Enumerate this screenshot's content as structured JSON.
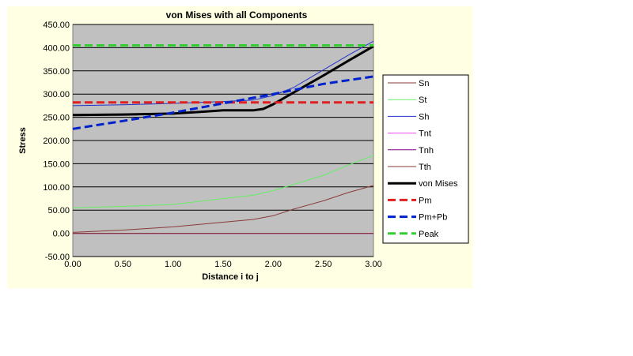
{
  "chart_data": {
    "type": "line",
    "title": "von Mises with all Components",
    "xlabel": "Distance i to j",
    "ylabel": "Stress",
    "xlim": [
      0,
      3
    ],
    "ylim": [
      -50,
      450
    ],
    "x_ticks": [
      "0.00",
      "0.50",
      "1.00",
      "1.50",
      "2.00",
      "2.50",
      "3.00"
    ],
    "y_ticks": [
      "-50.00",
      "0.00",
      "50.00",
      "100.00",
      "150.00",
      "200.00",
      "250.00",
      "300.00",
      "350.00",
      "400.00",
      "450.00"
    ],
    "grid": "horizontal",
    "plot_background": "#c0c0c0",
    "legend_position": "right",
    "series": [
      {
        "name": "Sn",
        "color": "#8b3a3a",
        "style": "thin",
        "x": [
          0,
          0.5,
          1.0,
          1.5,
          1.8,
          2.0,
          2.2,
          2.5,
          2.75,
          3.0
        ],
        "y": [
          2,
          7,
          14,
          24,
          30,
          38,
          52,
          70,
          88,
          103
        ]
      },
      {
        "name": "St",
        "color": "#66ee66",
        "style": "thin",
        "x": [
          0,
          0.5,
          1.0,
          1.5,
          1.8,
          2.0,
          2.2,
          2.5,
          2.75,
          3.0
        ],
        "y": [
          55,
          58,
          62,
          75,
          82,
          92,
          105,
          125,
          147,
          168
        ]
      },
      {
        "name": "Sh",
        "color": "#2233cc",
        "style": "thin",
        "x": [
          0,
          0.5,
          1.0,
          1.5,
          1.8,
          2.0,
          2.2,
          2.5,
          2.75,
          3.0
        ],
        "y": [
          275,
          277,
          280,
          284,
          287,
          297,
          314,
          352,
          384,
          414
        ]
      },
      {
        "name": "Tnt",
        "color": "#ee44ee",
        "style": "thin",
        "x": [
          0,
          3.0
        ],
        "y": [
          0,
          0
        ]
      },
      {
        "name": "Tnh",
        "color": "#800080",
        "style": "thin",
        "x": [
          0,
          3.0
        ],
        "y": [
          0,
          0
        ]
      },
      {
        "name": "Tth",
        "color": "#8b3a3a",
        "style": "thin",
        "x": [
          0,
          3.0
        ],
        "y": [
          0,
          0
        ]
      },
      {
        "name": "von Mises",
        "color": "#000000",
        "style": "thick",
        "x": [
          0,
          0.5,
          1.0,
          1.3,
          1.5,
          1.8,
          1.9,
          2.0,
          2.2,
          2.5,
          2.75,
          3.0
        ],
        "y": [
          255,
          256,
          258,
          262,
          265,
          265,
          268,
          278,
          303,
          340,
          372,
          403
        ]
      },
      {
        "name": "Pm",
        "color": "#e02020",
        "style": "dashed",
        "x": [
          0,
          3.0
        ],
        "y": [
          282,
          282
        ]
      },
      {
        "name": "Pm+Pb",
        "color": "#0022cc",
        "style": "dashed",
        "x": [
          0,
          0.5,
          1.0,
          1.5,
          2.0,
          2.5,
          3.0
        ],
        "y": [
          225,
          242,
          260,
          280,
          300,
          322,
          338
        ]
      },
      {
        "name": "Peak",
        "color": "#33cc33",
        "style": "dashed",
        "x": [
          0,
          3.0
        ],
        "y": [
          405,
          405
        ]
      }
    ]
  }
}
